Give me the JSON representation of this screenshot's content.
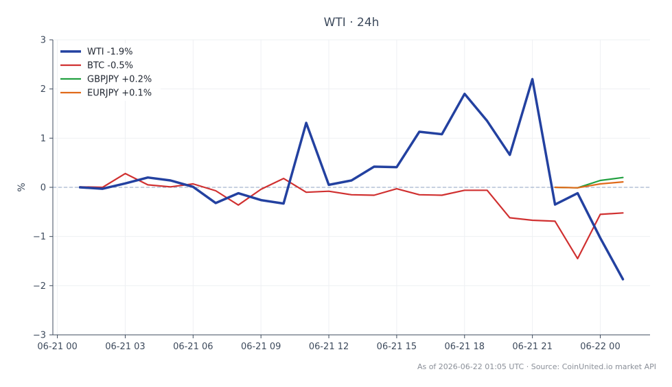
{
  "chart_data": {
    "type": "line",
    "title": "WTI · 24h",
    "xlabel": "",
    "ylabel": "%",
    "ylim": [
      -3,
      3
    ],
    "yticks": [
      3,
      2,
      1,
      0,
      -1,
      -2,
      -3
    ],
    "ytick_labels": [
      "3",
      "2",
      "1",
      "0",
      "−1",
      "−2",
      "−3"
    ],
    "xlim_hours": [
      -0.2,
      26.2
    ],
    "xticks_hours": [
      0,
      3,
      6,
      9,
      12,
      15,
      18,
      21,
      24
    ],
    "xtick_labels": [
      "06-21 00",
      "06-21 03",
      "06-21 06",
      "06-21 09",
      "06-21 12",
      "06-21 15",
      "06-21 18",
      "06-21 21",
      "06-22 00"
    ],
    "grid": true,
    "zero_line": true,
    "legend_position": "top-left",
    "series": [
      {
        "name": "WTI -1.9%",
        "color": "#2341a0",
        "width": 3.5,
        "x": [
          1,
          2,
          3,
          4,
          5,
          6,
          7,
          8,
          9,
          10,
          11,
          12,
          13,
          14,
          15,
          16,
          17,
          18,
          19,
          20,
          21,
          22,
          23,
          24,
          25
        ],
        "y": [
          0.0,
          -0.03,
          0.08,
          0.2,
          0.14,
          0.01,
          -0.32,
          -0.12,
          -0.26,
          -0.33,
          1.31,
          0.05,
          0.14,
          0.42,
          0.41,
          1.13,
          1.08,
          1.9,
          1.35,
          0.66,
          2.2,
          -0.35,
          -0.12,
          -1.03,
          -1.87
        ]
      },
      {
        "name": "BTC -0.5%",
        "color": "#d03030",
        "width": 2.2,
        "x": [
          1,
          2,
          3,
          4,
          5,
          6,
          7,
          8,
          9,
          10,
          11,
          12,
          13,
          14,
          15,
          16,
          17,
          18,
          19,
          20,
          21,
          22,
          23,
          24,
          25
        ],
        "y": [
          0.01,
          0.0,
          0.28,
          0.05,
          0.01,
          0.07,
          -0.07,
          -0.36,
          -0.04,
          0.18,
          -0.1,
          -0.08,
          -0.15,
          -0.16,
          -0.03,
          -0.15,
          -0.16,
          -0.06,
          -0.06,
          -0.62,
          -0.67,
          -0.69,
          -1.45,
          -0.55,
          -0.52
        ]
      },
      {
        "name": "GBPJPY +0.2%",
        "color": "#22a040",
        "width": 2.2,
        "x": [
          22,
          23,
          24,
          25
        ],
        "y": [
          0.0,
          -0.01,
          0.14,
          0.2
        ]
      },
      {
        "name": "EURJPY +0.1%",
        "color": "#e06a1a",
        "width": 2.2,
        "x": [
          22,
          23,
          24,
          25
        ],
        "y": [
          0.0,
          -0.01,
          0.07,
          0.11
        ]
      }
    ]
  },
  "footer": "As of 2026-06-22 01:05 UTC · Source: CoinUnited.io market API"
}
